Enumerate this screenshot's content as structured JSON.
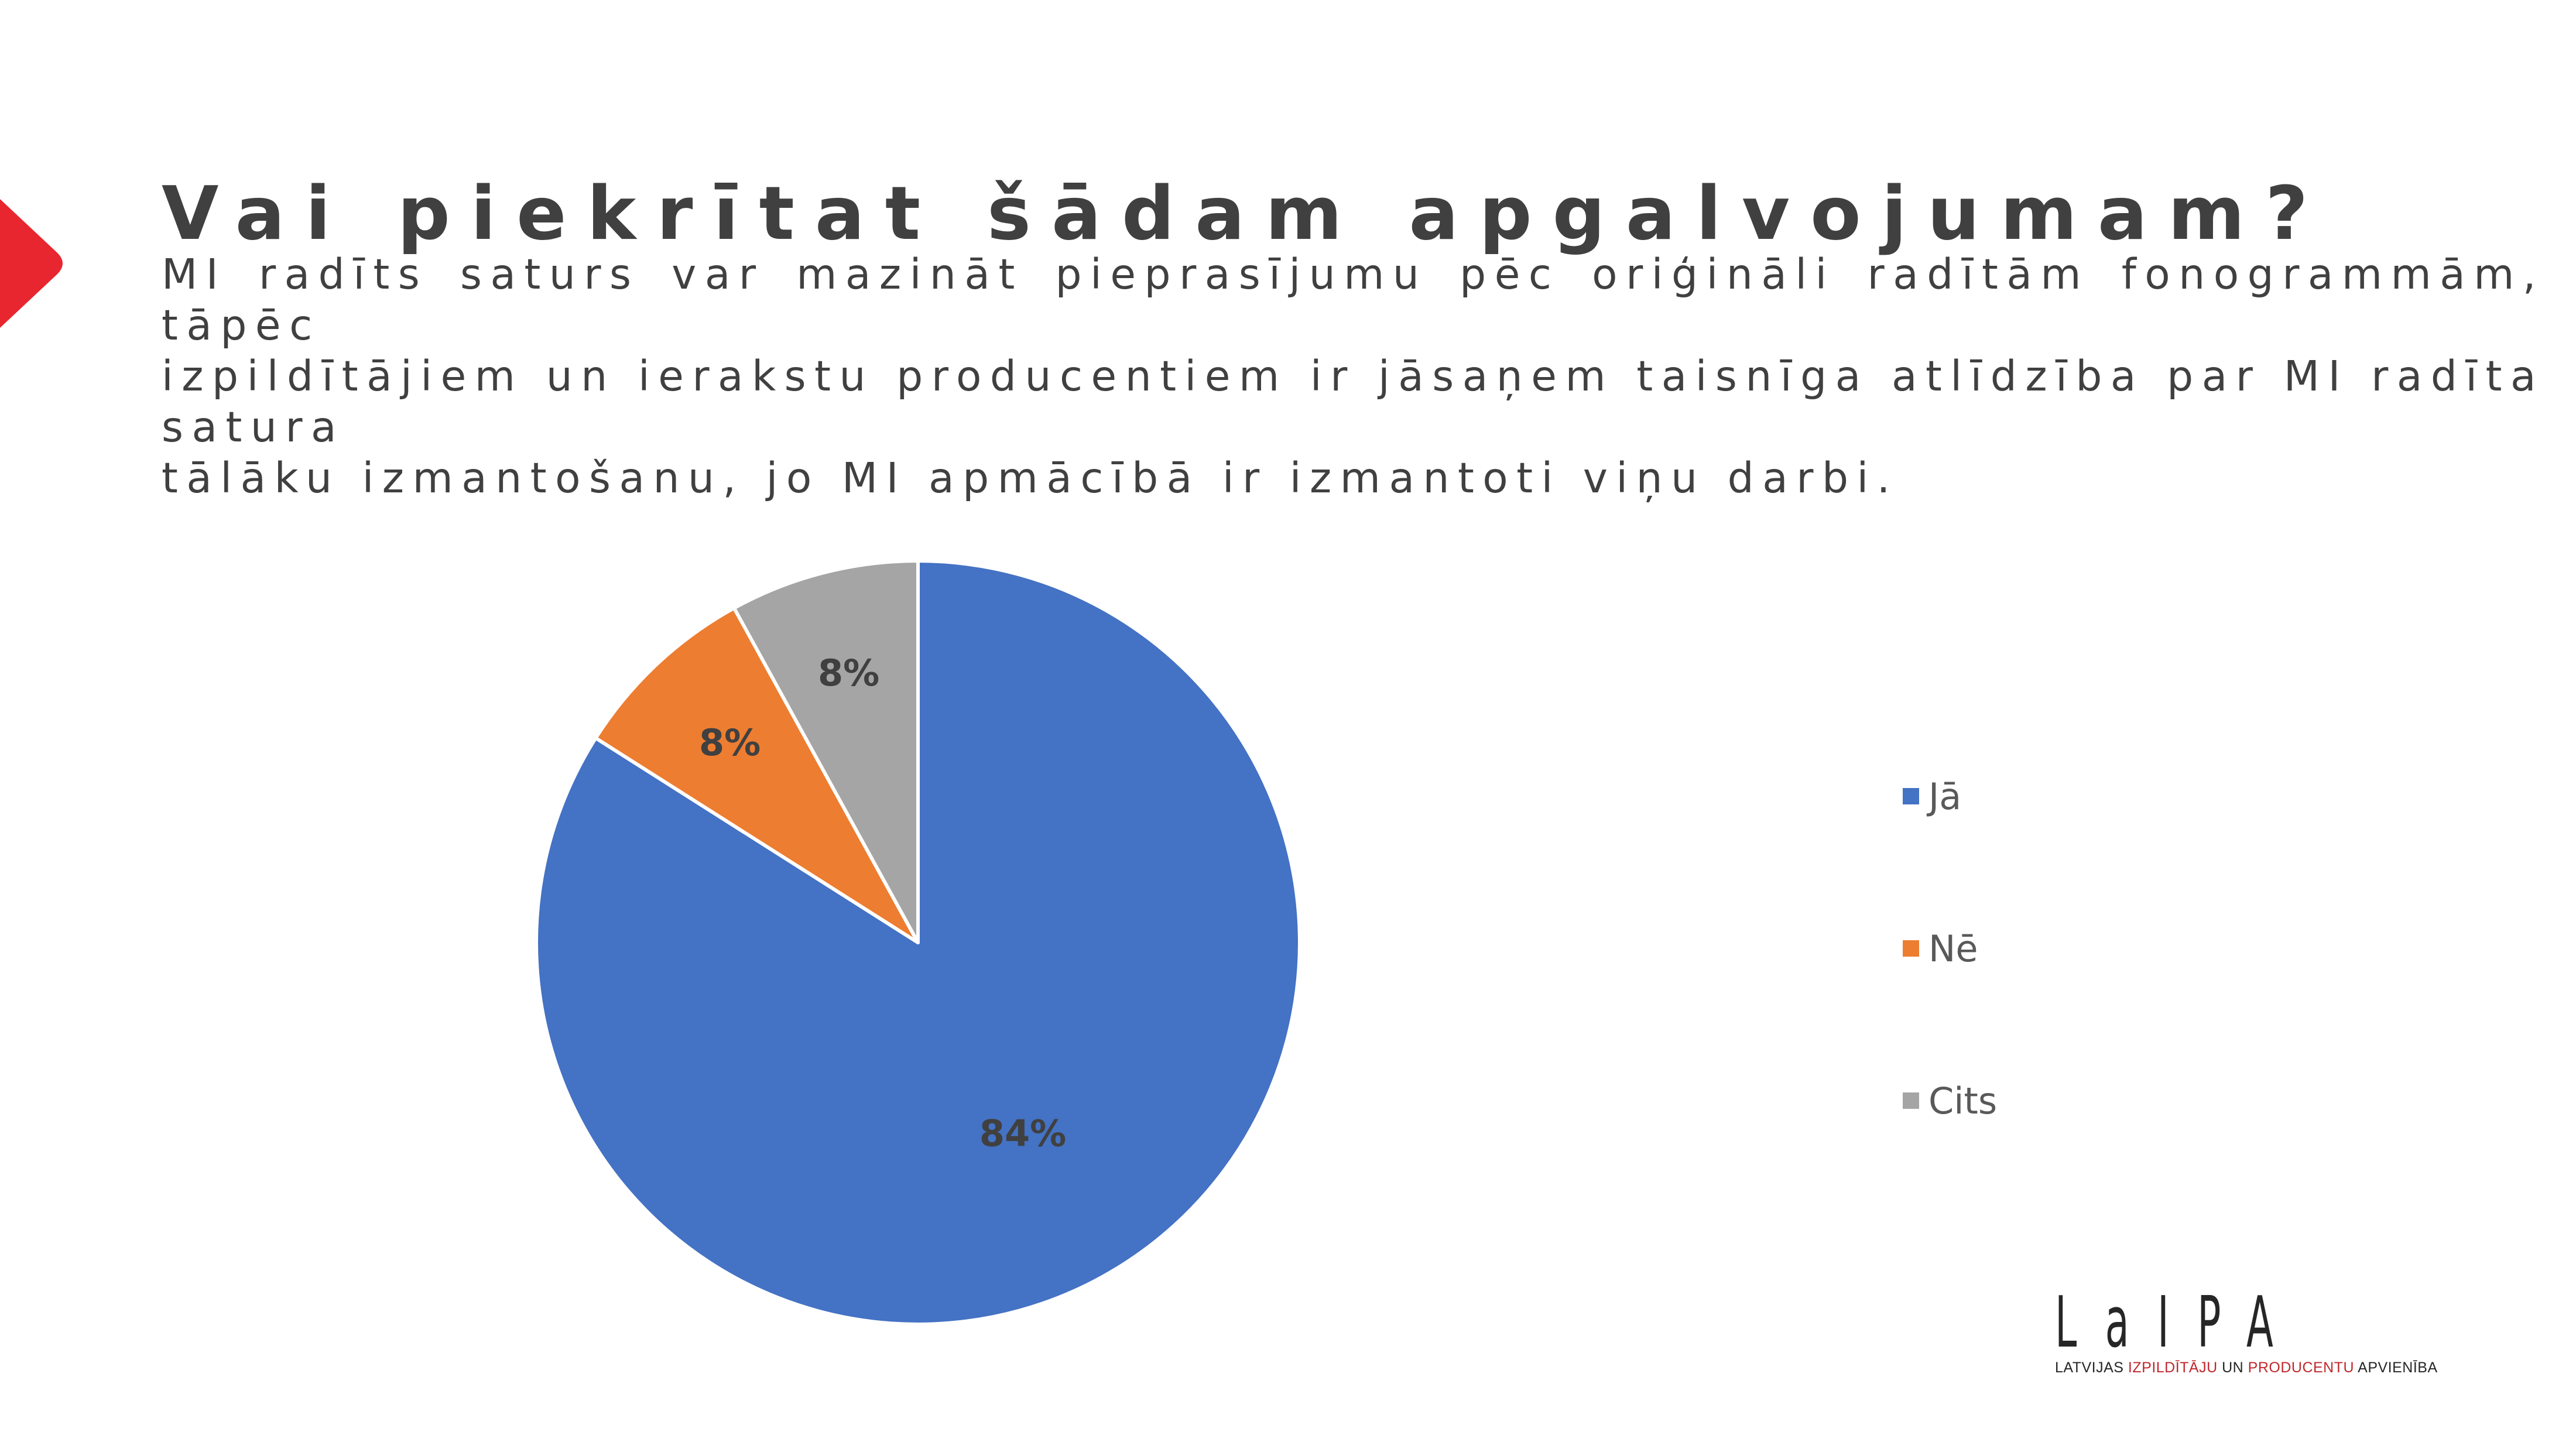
{
  "heading": {
    "title": "Vai piekrītat šādam apgalvojumam?",
    "subtitle_lines": [
      "MI radīts saturs var mazināt pieprasījumu pēc oriģināli radītām fonogrammām, tāpēc",
      "izpildītājiem un ierakstu producentiem ir jāsaņem taisnīga atlīdzība par MI radīta satura",
      "tālāku izmantošanu, jo MI apmācībā ir izmantoti viņu darbi."
    ]
  },
  "colors": {
    "accent_arrow": "#e8262f",
    "text": "#404040"
  },
  "chart_data": {
    "type": "pie",
    "title": "",
    "slices": [
      {
        "label": "Jā",
        "value": 84,
        "display": "84%",
        "color": "#4472c4"
      },
      {
        "label": "Nē",
        "value": 8,
        "display": "8%",
        "color": "#ed7d31"
      },
      {
        "label": "Cits",
        "value": 8,
        "display": "8%",
        "color": "#a5a5a5"
      }
    ],
    "start_angle": "12 o'clock",
    "direction": "clockwise",
    "data_labels": "inside, percent",
    "legend_position": "right"
  },
  "logo": {
    "mark": "LaIPA",
    "tagline_parts": [
      {
        "text": "LATVIJAS ",
        "accent": false
      },
      {
        "text": "IZPILDĪTĀJU",
        "accent": true
      },
      {
        "text": " UN ",
        "accent": false
      },
      {
        "text": "PRODUCENTU",
        "accent": true
      },
      {
        "text": " APVIENĪBA",
        "accent": false
      }
    ]
  }
}
